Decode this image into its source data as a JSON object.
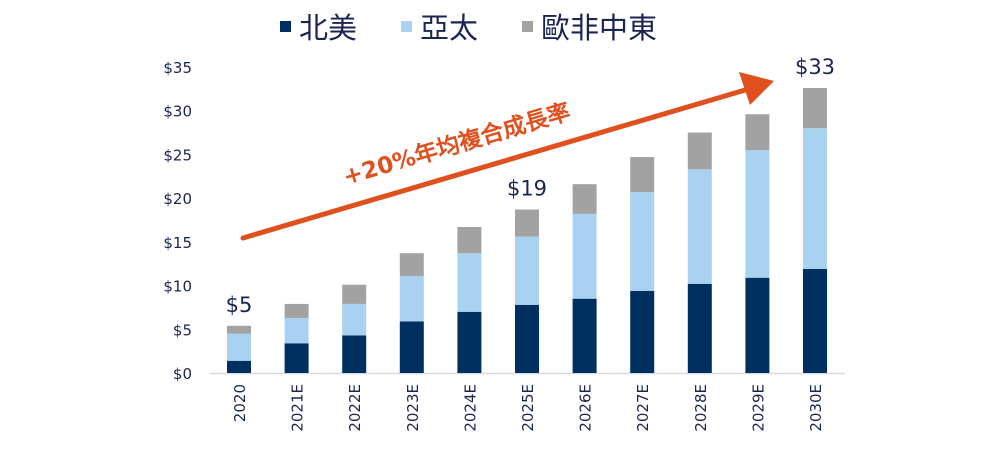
{
  "chart_data": {
    "type": "bar",
    "stacked": true,
    "title": "",
    "xlabel": "",
    "ylabel": "",
    "ylim": [
      0,
      35
    ],
    "yticks": [
      0,
      5,
      10,
      15,
      20,
      25,
      30,
      35
    ],
    "ytick_labels": [
      "$0",
      "$5",
      "$10",
      "$15",
      "$20",
      "$25",
      "$30",
      "$35"
    ],
    "grid": false,
    "legend_position": "top-center",
    "categories": [
      "2020",
      "2021E",
      "2022E",
      "2023E",
      "2024E",
      "2025E",
      "2026E",
      "2027E",
      "2028E",
      "2029E",
      "2030E"
    ],
    "series": [
      {
        "name": "北美",
        "color": "#00305f",
        "values": [
          1.4,
          3.4,
          4.3,
          5.9,
          7.0,
          7.8,
          8.5,
          9.4,
          10.2,
          10.9,
          11.9
        ]
      },
      {
        "name": "亞太",
        "color": "#a9d1f0",
        "values": [
          3.1,
          2.9,
          3.6,
          5.2,
          6.7,
          7.8,
          9.7,
          11.3,
          13.1,
          14.6,
          16.1
        ]
      },
      {
        "name": "歐非中東",
        "color": "#a2a2a2",
        "values": [
          0.9,
          1.6,
          2.2,
          2.6,
          3.0,
          3.1,
          3.4,
          4.0,
          4.2,
          4.1,
          4.6
        ]
      }
    ],
    "annotations": [
      {
        "category": "2020",
        "text": "$5"
      },
      {
        "category": "2025E",
        "text": "$19"
      },
      {
        "category": "2030E",
        "text": "$33"
      }
    ],
    "trend_arrow": {
      "text": "+20%年均複合成長率",
      "color": "#e0501e"
    }
  }
}
